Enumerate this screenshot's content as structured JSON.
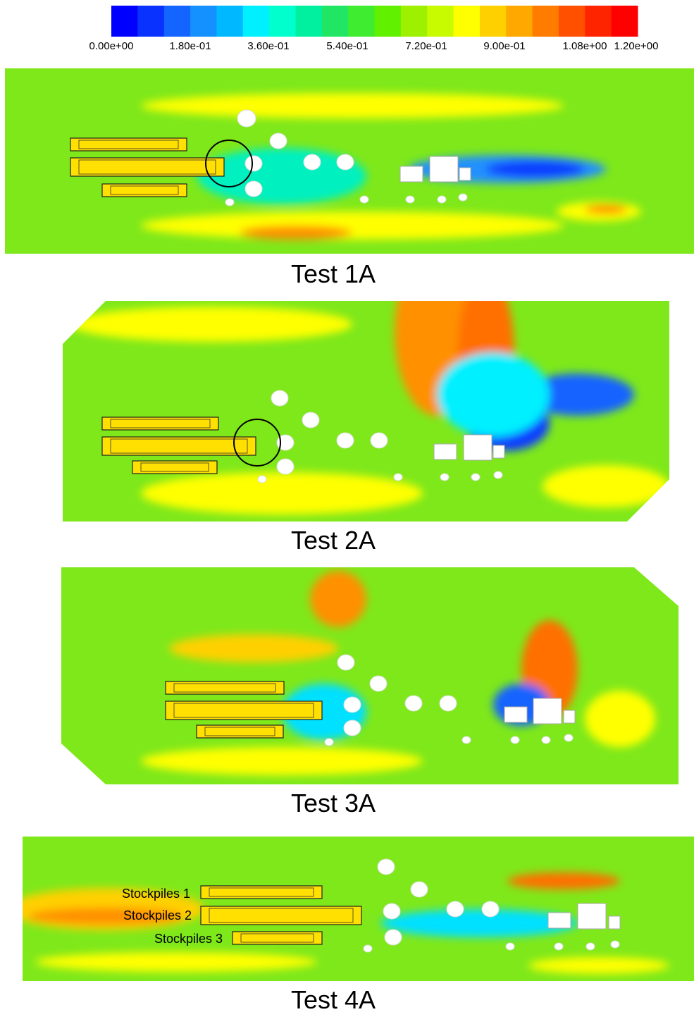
{
  "colorbar": {
    "ticks": [
      "0.00e+00",
      "1.80e-01",
      "3.60e-01",
      "5.40e-01",
      "7.20e-01",
      "9.00e-01",
      "1.08e+00",
      "1.20e+00"
    ]
  },
  "panels": [
    {
      "caption": "Test 1A"
    },
    {
      "caption": "Test 2A"
    },
    {
      "caption": "Test 3A"
    },
    {
      "caption": "Test 4A",
      "labels": [
        "Stockpiles 1",
        "Stockpiles 2",
        "Stockpiles 3"
      ]
    }
  ]
}
